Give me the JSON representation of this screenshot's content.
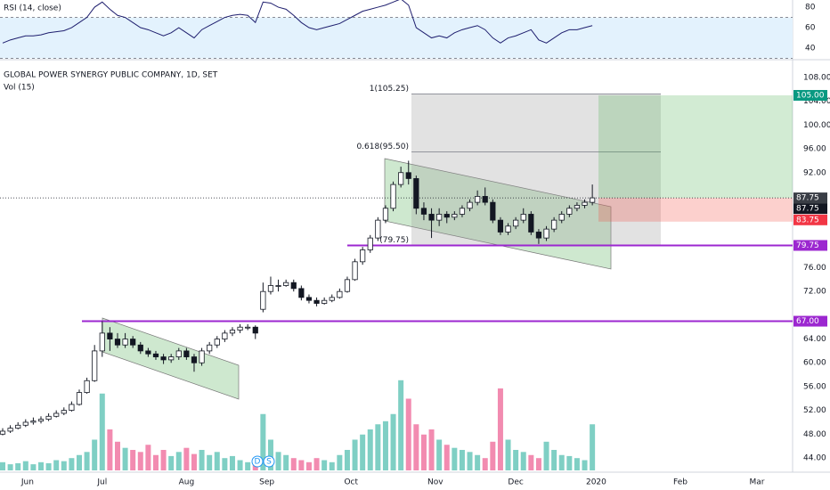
{
  "chart_data": [
    {
      "type": "line",
      "title": "RSI (14, close)",
      "color": "#1e1e6e",
      "ylim": [
        29.6,
        87
      ],
      "yticks": [
        40,
        60,
        80
      ],
      "band": [
        30,
        70
      ],
      "band_color": "#e3f2fd",
      "values": [
        45,
        48,
        50,
        52,
        52,
        53,
        55,
        56,
        57,
        60,
        65,
        70,
        80,
        85,
        78,
        72,
        70,
        65,
        60,
        58,
        55,
        52,
        55,
        60,
        55,
        50,
        58,
        62,
        66,
        70,
        72,
        73,
        72,
        65,
        85,
        84,
        80,
        78,
        72,
        65,
        60,
        58,
        60,
        62,
        64,
        68,
        72,
        76,
        78,
        80,
        82,
        85,
        88,
        82,
        60,
        55,
        50,
        52,
        50,
        55,
        58,
        60,
        62,
        58,
        50,
        45,
        50,
        52,
        55,
        58,
        48,
        45,
        50,
        55,
        58,
        58,
        60,
        62
      ]
    },
    {
      "type": "candlestick",
      "title": "GLOBAL POWER SYNERGY PUBLIC COMPANY, 1D, SET",
      "subtitle": "Vol (15)",
      "up_color": "#ffffff",
      "down_color": "#131722",
      "volume_up_color": "#7fcfc4",
      "volume_down_color": "#f28bb0",
      "xlim": [
        0,
        207
      ],
      "xticks": [
        {
          "value": 6.5,
          "label": "Jun"
        },
        {
          "value": 26,
          "label": "Jul"
        },
        {
          "value": 48,
          "label": "Aug"
        },
        {
          "value": 69,
          "label": "Sep"
        },
        {
          "value": 91,
          "label": "Oct"
        },
        {
          "value": 113,
          "label": "Nov"
        },
        {
          "value": 134,
          "label": "Dec"
        },
        {
          "value": 155,
          "label": "2020"
        },
        {
          "value": 177,
          "label": "Feb"
        },
        {
          "value": 197,
          "label": "Mar"
        }
      ],
      "ylim": [
        41.6,
        110.25
      ],
      "yticks": [
        {
          "value": 108,
          "label": "108.00"
        },
        {
          "value": 104,
          "label": "104.00"
        },
        {
          "value": 100,
          "label": "100.00"
        },
        {
          "value": 96,
          "label": "96.00"
        },
        {
          "value": 92,
          "label": "92.00"
        },
        {
          "value": 76,
          "label": "76.00"
        },
        {
          "value": 72,
          "label": "72.00"
        },
        {
          "value": 64,
          "label": "64.00"
        },
        {
          "value": 60,
          "label": "60.00"
        },
        {
          "value": 56,
          "label": "56.00"
        },
        {
          "value": 52,
          "label": "52.00"
        },
        {
          "value": 48,
          "label": "48.00"
        },
        {
          "value": 44,
          "label": "44.00"
        }
      ],
      "x": [
        0,
        2,
        4,
        6,
        8,
        10,
        12,
        14,
        16,
        18,
        20,
        22,
        24,
        26,
        28,
        30,
        32,
        34,
        36,
        38,
        40,
        42,
        44,
        46,
        48,
        50,
        52,
        54,
        56,
        58,
        60,
        62,
        64,
        66,
        68,
        70,
        72,
        74,
        76,
        78,
        80,
        82,
        84,
        86,
        88,
        90,
        92,
        94,
        96,
        98,
        100,
        102,
        104,
        106,
        108,
        110,
        112,
        114,
        116,
        118,
        120,
        122,
        124,
        126,
        128,
        130,
        132,
        134,
        136,
        138,
        140,
        142,
        144,
        146,
        148,
        150,
        152,
        154
      ],
      "candles": [
        [
          48,
          49,
          47.8,
          48.5
        ],
        [
          48.5,
          49.5,
          48.2,
          49
        ],
        [
          49,
          50,
          48.8,
          49.5
        ],
        [
          49.5,
          50.5,
          49.2,
          50
        ],
        [
          50,
          50.8,
          49.6,
          50.2
        ],
        [
          50.2,
          51,
          49.8,
          50.5
        ],
        [
          50.5,
          51.5,
          50.2,
          51
        ],
        [
          51,
          52,
          50.8,
          51.5
        ],
        [
          51.5,
          52.5,
          51.2,
          52
        ],
        [
          52,
          53.5,
          51.8,
          53
        ],
        [
          53,
          55.5,
          52.8,
          55
        ],
        [
          55,
          57.5,
          54.8,
          57
        ],
        [
          57,
          63,
          56.8,
          62
        ],
        [
          62,
          67,
          61,
          65
        ],
        [
          65,
          66,
          62,
          64
        ],
        [
          64,
          65,
          62.5,
          63
        ],
        [
          63,
          65,
          62.5,
          64
        ],
        [
          64,
          64.5,
          62.5,
          63
        ],
        [
          63,
          63.5,
          61.5,
          62
        ],
        [
          62,
          62.5,
          61,
          61.5
        ],
        [
          61.5,
          62,
          60.5,
          61
        ],
        [
          61,
          61.5,
          59.8,
          60.5
        ],
        [
          60.5,
          61.5,
          60,
          61
        ],
        [
          61,
          62.5,
          60.5,
          62
        ],
        [
          62,
          62.5,
          60.5,
          61
        ],
        [
          61,
          61.5,
          58.5,
          60
        ],
        [
          60,
          62.5,
          59.5,
          62
        ],
        [
          62,
          63.5,
          61.5,
          63
        ],
        [
          63,
          64.5,
          62.5,
          64
        ],
        [
          64,
          65.5,
          63.5,
          65
        ],
        [
          65,
          66,
          64.5,
          65.5
        ],
        [
          65.5,
          66.5,
          65,
          66
        ],
        [
          66,
          66.5,
          65.5,
          66
        ],
        [
          66,
          66.3,
          64,
          65
        ],
        [
          69,
          73.5,
          68.5,
          72
        ],
        [
          72,
          74.5,
          71.5,
          73
        ],
        [
          73,
          74,
          72,
          73
        ],
        [
          73,
          74,
          72.8,
          73.5
        ],
        [
          73.5,
          74,
          72,
          72.5
        ],
        [
          72.5,
          73,
          70.5,
          71
        ],
        [
          71,
          71.5,
          70,
          70.5
        ],
        [
          70.5,
          71,
          69.5,
          70
        ],
        [
          70,
          71,
          69.8,
          70.5
        ],
        [
          70.5,
          71.5,
          70.2,
          71
        ],
        [
          71,
          72.5,
          70.8,
          72
        ],
        [
          72,
          74.5,
          71.8,
          74
        ],
        [
          74,
          77.5,
          73.8,
          77
        ],
        [
          77,
          79.5,
          76.5,
          79
        ],
        [
          79,
          81.5,
          78.5,
          81
        ],
        [
          81,
          84.5,
          80.5,
          84
        ],
        [
          84,
          86.5,
          83.5,
          86
        ],
        [
          86,
          90.5,
          85.5,
          90
        ],
        [
          90,
          93,
          89.5,
          92
        ],
        [
          92,
          94,
          90,
          91
        ],
        [
          91,
          91.5,
          85,
          86
        ],
        [
          86,
          87,
          84,
          85
        ],
        [
          85,
          86,
          81,
          84
        ],
        [
          84,
          86,
          83,
          85
        ],
        [
          85,
          85.5,
          83.5,
          84.5
        ],
        [
          84.5,
          85.5,
          84,
          85
        ],
        [
          85,
          86.5,
          84.5,
          86
        ],
        [
          86,
          87.5,
          85.5,
          87
        ],
        [
          87,
          89,
          86.5,
          88
        ],
        [
          88,
          89.5,
          86.5,
          87
        ],
        [
          87,
          87.5,
          83.5,
          84
        ],
        [
          84,
          84.5,
          81.5,
          82
        ],
        [
          82,
          83.5,
          81.5,
          83
        ],
        [
          83,
          84.5,
          82.5,
          84
        ],
        [
          84,
          86,
          83.5,
          85
        ],
        [
          85,
          85.5,
          81.5,
          82
        ],
        [
          82,
          82.5,
          80,
          81
        ],
        [
          81,
          83,
          80.5,
          82.5
        ],
        [
          82.5,
          84.5,
          82,
          84
        ],
        [
          84,
          85.5,
          83.5,
          85
        ],
        [
          85,
          86.5,
          84.5,
          86
        ],
        [
          86,
          87,
          85.5,
          86.5
        ],
        [
          86.5,
          87.5,
          86,
          87
        ],
        [
          87,
          90,
          86.5,
          87.75
        ]
      ],
      "volume_lim": [
        0,
        100
      ],
      "volume": [
        8,
        6,
        7,
        9,
        6,
        8,
        7,
        10,
        9,
        12,
        15,
        18,
        30,
        75,
        40,
        28,
        22,
        20,
        18,
        25,
        15,
        20,
        14,
        18,
        22,
        16,
        20,
        15,
        18,
        12,
        14,
        10,
        8,
        12,
        55,
        30,
        18,
        15,
        12,
        10,
        8,
        12,
        10,
        8,
        15,
        20,
        30,
        35,
        40,
        45,
        48,
        55,
        88,
        70,
        45,
        35,
        40,
        30,
        25,
        22,
        20,
        18,
        15,
        12,
        28,
        80,
        30,
        20,
        18,
        15,
        12,
        28,
        20,
        15,
        14,
        12,
        10,
        45
      ],
      "levels": [
        {
          "value": 79.75,
          "label": "79.75",
          "color": "#9c27d0"
        },
        {
          "value": 67,
          "label": "67.00",
          "color": "#9c27d0"
        }
      ],
      "fib": [
        {
          "value": 105.25,
          "label": "1(105.25)"
        },
        {
          "value": 95.5,
          "label": "0.618(95.50)"
        },
        {
          "value": 79.75,
          "label": "(79.75)"
        }
      ],
      "position": {
        "target": {
          "value": 105,
          "label": "105.00",
          "color": "#089981"
        },
        "entry": {
          "value": 87.75,
          "label": "87.75",
          "color": "#131722"
        },
        "stop": {
          "value": 83.75,
          "label": "83.75",
          "color": "#f23645"
        }
      },
      "last_price": {
        "value": 87.75,
        "label": "87.75",
        "color": "#3a3e46"
      },
      "events": [
        "D",
        "S"
      ]
    }
  ]
}
